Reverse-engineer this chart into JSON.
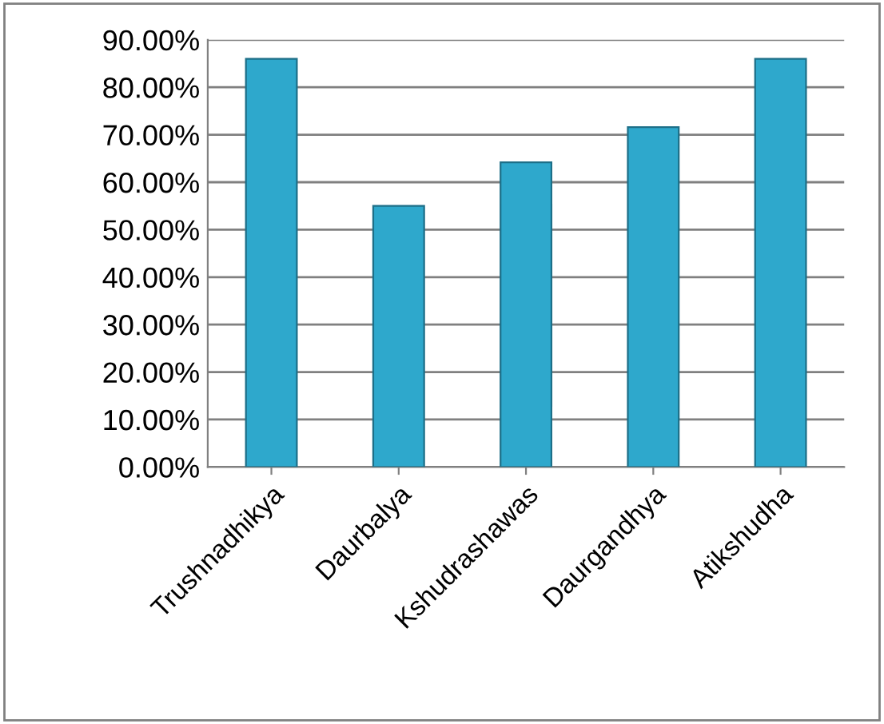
{
  "chart_data": {
    "type": "bar",
    "categories": [
      "Trushnadhikya",
      "Daurbalya",
      "Kshudrashawas",
      "Daurgandhya",
      "Atikshudha"
    ],
    "values": [
      86,
      55,
      64.2,
      71.6,
      86
    ],
    "color": "#2ea8cc",
    "ylim": [
      0,
      90
    ],
    "yticks": [
      {
        "value": 0,
        "label": "0.00%"
      },
      {
        "value": 10,
        "label": "10.00%"
      },
      {
        "value": 20,
        "label": "20.00%"
      },
      {
        "value": 30,
        "label": "30.00%"
      },
      {
        "value": 40,
        "label": "40.00%"
      },
      {
        "value": 50,
        "label": "50.00%"
      },
      {
        "value": 60,
        "label": "60.00%"
      },
      {
        "value": 70,
        "label": "70.00%"
      },
      {
        "value": 80,
        "label": "80.00%"
      },
      {
        "value": 90,
        "label": "90.00%"
      }
    ],
    "grid": "y",
    "legend": false
  }
}
